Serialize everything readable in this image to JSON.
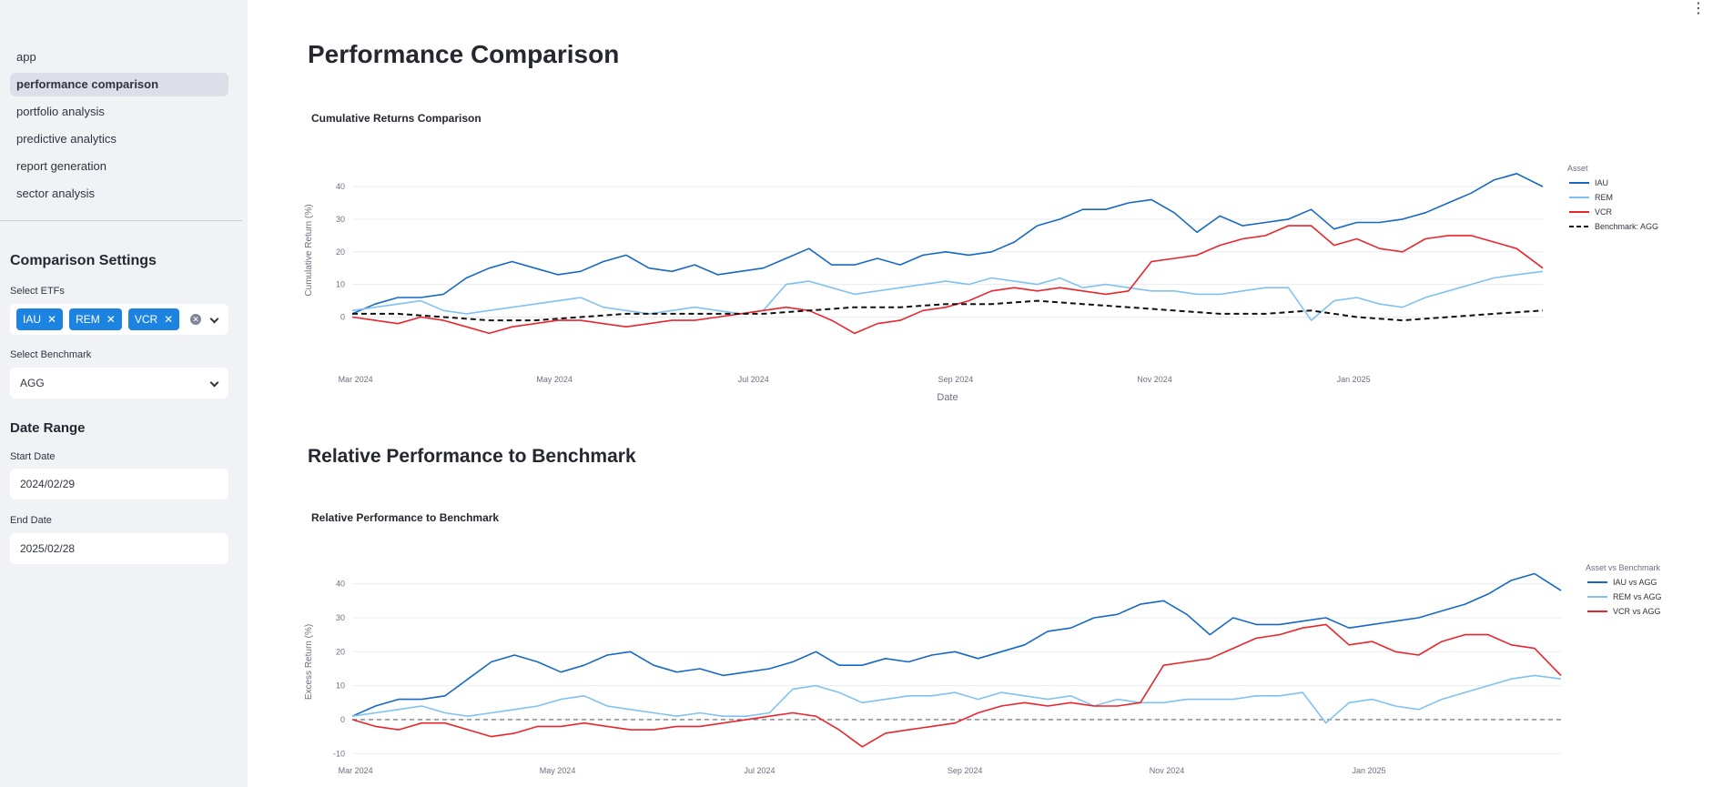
{
  "sidebar": {
    "nav": [
      "app",
      "performance comparison",
      "portfolio analysis",
      "predictive analytics",
      "report generation",
      "sector analysis"
    ],
    "active_index": 1,
    "settings_title": "Comparison Settings",
    "etf_label": "Select ETFs",
    "etfs": [
      "IAU",
      "REM",
      "VCR"
    ],
    "benchmark_label": "Select Benchmark",
    "benchmark_value": "AGG",
    "date_title": "Date Range",
    "start_label": "Start Date",
    "start_value": "2024/02/29",
    "end_label": "End Date",
    "end_value": "2025/02/28"
  },
  "main": {
    "page_title": "Performance Comparison",
    "section_title": "Relative Performance to Benchmark"
  },
  "colors": {
    "IAU": "#1668c4",
    "REM": "#7fc2f2",
    "VCR": "#e8262b",
    "benchmark": "#111111",
    "accent": "#1c83e1"
  },
  "chart_data": [
    {
      "type": "line",
      "title": "Cumulative Returns Comparison",
      "xlabel": "Date",
      "ylabel": "Cumulative Return (%)",
      "x_range": [
        "2024-02-29",
        "2025-02-28"
      ],
      "ylim": [
        -6,
        47
      ],
      "y_ticks": [
        0,
        10,
        20,
        30,
        40
      ],
      "x_ticks": [
        "2024-03-01",
        "2024-05-01",
        "2024-07-01",
        "2024-09-01",
        "2024-11-01",
        "2025-01-01"
      ],
      "x_tick_labels": [
        "Mar 2024",
        "May 2024",
        "Jul 2024",
        "Sep 2024",
        "Nov 2024",
        "Jan 2025"
      ],
      "legend_title": "Asset",
      "legend_position": "top-right",
      "grid": true,
      "series": [
        {
          "name": "IAU",
          "color": "#1668c4",
          "dash": false,
          "x": [
            "2024-02-29",
            "2024-03-07",
            "2024-03-14",
            "2024-03-21",
            "2024-03-28",
            "2024-04-04",
            "2024-04-11",
            "2024-04-18",
            "2024-04-25",
            "2024-05-02",
            "2024-05-09",
            "2024-05-16",
            "2024-05-23",
            "2024-05-30",
            "2024-06-06",
            "2024-06-13",
            "2024-06-20",
            "2024-06-27",
            "2024-07-04",
            "2024-07-11",
            "2024-07-18",
            "2024-07-25",
            "2024-08-01",
            "2024-08-08",
            "2024-08-15",
            "2024-08-22",
            "2024-08-29",
            "2024-09-05",
            "2024-09-12",
            "2024-09-19",
            "2024-09-26",
            "2024-10-03",
            "2024-10-10",
            "2024-10-17",
            "2024-10-24",
            "2024-10-31",
            "2024-11-07",
            "2024-11-14",
            "2024-11-21",
            "2024-11-28",
            "2024-12-05",
            "2024-12-12",
            "2024-12-19",
            "2024-12-26",
            "2025-01-02",
            "2025-01-09",
            "2025-01-16",
            "2025-01-23",
            "2025-01-30",
            "2025-02-06",
            "2025-02-13",
            "2025-02-20",
            "2025-02-28"
          ],
          "values": [
            1,
            4,
            6,
            6,
            7,
            12,
            15,
            17,
            15,
            13,
            14,
            17,
            19,
            15,
            14,
            16,
            13,
            14,
            15,
            18,
            21,
            16,
            16,
            18,
            16,
            19,
            20,
            19,
            20,
            23,
            28,
            30,
            33,
            33,
            35,
            36,
            32,
            26,
            31,
            28,
            29,
            30,
            33,
            27,
            29,
            29,
            30,
            32,
            35,
            38,
            42,
            44,
            40
          ]
        },
        {
          "name": "REM",
          "color": "#7fc2f2",
          "dash": false,
          "x": [
            "2024-02-29",
            "2024-03-07",
            "2024-03-14",
            "2024-03-21",
            "2024-03-28",
            "2024-04-04",
            "2024-04-11",
            "2024-04-18",
            "2024-04-25",
            "2024-05-02",
            "2024-05-09",
            "2024-05-16",
            "2024-05-23",
            "2024-05-30",
            "2024-06-06",
            "2024-06-13",
            "2024-06-20",
            "2024-06-27",
            "2024-07-04",
            "2024-07-11",
            "2024-07-18",
            "2024-07-25",
            "2024-08-01",
            "2024-08-08",
            "2024-08-15",
            "2024-08-22",
            "2024-08-29",
            "2024-09-05",
            "2024-09-12",
            "2024-09-19",
            "2024-09-26",
            "2024-10-03",
            "2024-10-10",
            "2024-10-17",
            "2024-10-24",
            "2024-10-31",
            "2024-11-07",
            "2024-11-14",
            "2024-11-21",
            "2024-11-28",
            "2024-12-05",
            "2024-12-12",
            "2024-12-19",
            "2024-12-26",
            "2025-01-02",
            "2025-01-09",
            "2025-01-16",
            "2025-01-23",
            "2025-01-30",
            "2025-02-06",
            "2025-02-13",
            "2025-02-20",
            "2025-02-28"
          ],
          "values": [
            2,
            3,
            4,
            5,
            2,
            1,
            2,
            3,
            4,
            5,
            6,
            3,
            2,
            1,
            2,
            3,
            2,
            1,
            2,
            10,
            11,
            9,
            7,
            8,
            9,
            10,
            11,
            10,
            12,
            11,
            10,
            12,
            9,
            10,
            9,
            8,
            8,
            7,
            7,
            8,
            9,
            9,
            -1,
            5,
            6,
            4,
            3,
            6,
            8,
            10,
            12,
            13,
            14
          ]
        },
        {
          "name": "VCR",
          "color": "#e8262b",
          "dash": false,
          "x": [
            "2024-02-29",
            "2024-03-07",
            "2024-03-14",
            "2024-03-21",
            "2024-03-28",
            "2024-04-04",
            "2024-04-11",
            "2024-04-18",
            "2024-04-25",
            "2024-05-02",
            "2024-05-09",
            "2024-05-16",
            "2024-05-23",
            "2024-05-30",
            "2024-06-06",
            "2024-06-13",
            "2024-06-20",
            "2024-06-27",
            "2024-07-04",
            "2024-07-11",
            "2024-07-18",
            "2024-07-25",
            "2024-08-01",
            "2024-08-08",
            "2024-08-15",
            "2024-08-22",
            "2024-08-29",
            "2024-09-05",
            "2024-09-12",
            "2024-09-19",
            "2024-09-26",
            "2024-10-03",
            "2024-10-10",
            "2024-10-17",
            "2024-10-24",
            "2024-10-31",
            "2024-11-07",
            "2024-11-14",
            "2024-11-21",
            "2024-11-28",
            "2024-12-05",
            "2024-12-12",
            "2024-12-19",
            "2024-12-26",
            "2025-01-02",
            "2025-01-09",
            "2025-01-16",
            "2025-01-23",
            "2025-01-30",
            "2025-02-06",
            "2025-02-13",
            "2025-02-20",
            "2025-02-28"
          ],
          "values": [
            0,
            -1,
            -2,
            0,
            -1,
            -3,
            -5,
            -3,
            -2,
            -1,
            -1,
            -2,
            -3,
            -2,
            -1,
            -1,
            0,
            1,
            2,
            3,
            2,
            -1,
            -5,
            -2,
            -1,
            2,
            3,
            5,
            8,
            9,
            8,
            9,
            8,
            7,
            8,
            17,
            18,
            19,
            22,
            24,
            25,
            28,
            28,
            22,
            24,
            21,
            20,
            24,
            25,
            25,
            23,
            21,
            15
          ]
        },
        {
          "name": "Benchmark: AGG",
          "color": "#111111",
          "dash": true,
          "x": [
            "2024-02-29",
            "2024-03-14",
            "2024-03-28",
            "2024-04-11",
            "2024-04-25",
            "2024-05-09",
            "2024-05-23",
            "2024-06-06",
            "2024-06-20",
            "2024-07-04",
            "2024-07-18",
            "2024-08-01",
            "2024-08-15",
            "2024-08-29",
            "2024-09-12",
            "2024-09-26",
            "2024-10-10",
            "2024-10-24",
            "2024-11-07",
            "2024-11-21",
            "2024-12-05",
            "2024-12-19",
            "2025-01-02",
            "2025-01-16",
            "2025-01-30",
            "2025-02-13",
            "2025-02-28"
          ],
          "values": [
            1,
            1,
            0,
            -1,
            -1,
            0,
            1,
            1,
            1,
            1,
            2,
            3,
            3,
            4,
            4,
            5,
            4,
            3,
            2,
            1,
            1,
            2,
            0,
            -1,
            0,
            1,
            2
          ]
        }
      ]
    },
    {
      "type": "line",
      "title": "Relative Performance to Benchmark",
      "xlabel": "",
      "ylabel": "Excess Return (%)",
      "x_range": [
        "2024-02-29",
        "2025-02-28"
      ],
      "ylim": [
        -11,
        45
      ],
      "y_ticks": [
        -10,
        0,
        10,
        20,
        30,
        40
      ],
      "x_ticks": [
        "2024-03-01",
        "2024-05-01",
        "2024-07-01",
        "2024-09-01",
        "2024-11-01",
        "2025-01-01"
      ],
      "x_tick_labels": [
        "Mar 2024",
        "May 2024",
        "Jul 2024",
        "Sep 2024",
        "Nov 2024",
        "Jan 2025"
      ],
      "legend_title": "Asset vs Benchmark",
      "legend_position": "top-right",
      "zero_line": true,
      "grid": true,
      "series": [
        {
          "name": "IAU vs AGG",
          "color": "#1668c4",
          "dash": false,
          "x": [
            "2024-02-29",
            "2024-03-07",
            "2024-03-14",
            "2024-03-21",
            "2024-03-28",
            "2024-04-04",
            "2024-04-11",
            "2024-04-18",
            "2024-04-25",
            "2024-05-02",
            "2024-05-09",
            "2024-05-16",
            "2024-05-23",
            "2024-05-30",
            "2024-06-06",
            "2024-06-13",
            "2024-06-20",
            "2024-06-27",
            "2024-07-04",
            "2024-07-11",
            "2024-07-18",
            "2024-07-25",
            "2024-08-01",
            "2024-08-08",
            "2024-08-15",
            "2024-08-22",
            "2024-08-29",
            "2024-09-05",
            "2024-09-12",
            "2024-09-19",
            "2024-09-26",
            "2024-10-03",
            "2024-10-10",
            "2024-10-17",
            "2024-10-24",
            "2024-10-31",
            "2024-11-07",
            "2024-11-14",
            "2024-11-21",
            "2024-11-28",
            "2024-12-05",
            "2024-12-12",
            "2024-12-19",
            "2024-12-26",
            "2025-01-02",
            "2025-01-09",
            "2025-01-16",
            "2025-01-23",
            "2025-01-30",
            "2025-02-06",
            "2025-02-13",
            "2025-02-20",
            "2025-02-28"
          ],
          "values": [
            1,
            4,
            6,
            6,
            7,
            12,
            17,
            19,
            17,
            14,
            16,
            19,
            20,
            16,
            14,
            15,
            13,
            14,
            15,
            17,
            20,
            16,
            16,
            18,
            17,
            19,
            20,
            18,
            20,
            22,
            26,
            27,
            30,
            31,
            34,
            35,
            31,
            25,
            30,
            28,
            28,
            29,
            30,
            27,
            28,
            29,
            30,
            32,
            34,
            37,
            41,
            43,
            38
          ]
        },
        {
          "name": "REM vs AGG",
          "color": "#7fc2f2",
          "dash": false,
          "x": [
            "2024-02-29",
            "2024-03-07",
            "2024-03-14",
            "2024-03-21",
            "2024-03-28",
            "2024-04-04",
            "2024-04-11",
            "2024-04-18",
            "2024-04-25",
            "2024-05-02",
            "2024-05-09",
            "2024-05-16",
            "2024-05-23",
            "2024-05-30",
            "2024-06-06",
            "2024-06-13",
            "2024-06-20",
            "2024-06-27",
            "2024-07-04",
            "2024-07-11",
            "2024-07-18",
            "2024-07-25",
            "2024-08-01",
            "2024-08-08",
            "2024-08-15",
            "2024-08-22",
            "2024-08-29",
            "2024-09-05",
            "2024-09-12",
            "2024-09-19",
            "2024-09-26",
            "2024-10-03",
            "2024-10-10",
            "2024-10-17",
            "2024-10-24",
            "2024-10-31",
            "2024-11-07",
            "2024-11-14",
            "2024-11-21",
            "2024-11-28",
            "2024-12-05",
            "2024-12-12",
            "2024-12-19",
            "2024-12-26",
            "2025-01-02",
            "2025-01-09",
            "2025-01-16",
            "2025-01-23",
            "2025-01-30",
            "2025-02-06",
            "2025-02-13",
            "2025-02-20",
            "2025-02-28"
          ],
          "values": [
            1,
            2,
            3,
            4,
            2,
            1,
            2,
            3,
            4,
            6,
            7,
            4,
            3,
            2,
            1,
            2,
            1,
            1,
            2,
            9,
            10,
            8,
            5,
            6,
            7,
            7,
            8,
            6,
            8,
            7,
            6,
            7,
            4,
            6,
            5,
            5,
            6,
            6,
            6,
            7,
            7,
            8,
            -1,
            5,
            6,
            4,
            3,
            6,
            8,
            10,
            12,
            13,
            12
          ]
        },
        {
          "name": "VCR vs AGG",
          "color": "#e8262b",
          "dash": false,
          "x": [
            "2024-02-29",
            "2024-03-07",
            "2024-03-14",
            "2024-03-21",
            "2024-03-28",
            "2024-04-04",
            "2024-04-11",
            "2024-04-18",
            "2024-04-25",
            "2024-05-02",
            "2024-05-09",
            "2024-05-16",
            "2024-05-23",
            "2024-05-30",
            "2024-06-06",
            "2024-06-13",
            "2024-06-20",
            "2024-06-27",
            "2024-07-04",
            "2024-07-11",
            "2024-07-18",
            "2024-07-25",
            "2024-08-01",
            "2024-08-08",
            "2024-08-15",
            "2024-08-22",
            "2024-08-29",
            "2024-09-05",
            "2024-09-12",
            "2024-09-19",
            "2024-09-26",
            "2024-10-03",
            "2024-10-10",
            "2024-10-17",
            "2024-10-24",
            "2024-10-31",
            "2024-11-07",
            "2024-11-14",
            "2024-11-21",
            "2024-11-28",
            "2024-12-05",
            "2024-12-12",
            "2024-12-19",
            "2024-12-26",
            "2025-01-02",
            "2025-01-09",
            "2025-01-16",
            "2025-01-23",
            "2025-01-30",
            "2025-02-06",
            "2025-02-13",
            "2025-02-20",
            "2025-02-28"
          ],
          "values": [
            0,
            -2,
            -3,
            -1,
            -1,
            -3,
            -5,
            -4,
            -2,
            -2,
            -1,
            -2,
            -3,
            -3,
            -2,
            -2,
            -1,
            0,
            1,
            2,
            1,
            -3,
            -8,
            -4,
            -3,
            -2,
            -1,
            2,
            4,
            5,
            4,
            5,
            4,
            4,
            5,
            16,
            17,
            18,
            21,
            24,
            25,
            27,
            28,
            22,
            23,
            20,
            19,
            23,
            25,
            25,
            22,
            21,
            13
          ]
        }
      ]
    }
  ]
}
